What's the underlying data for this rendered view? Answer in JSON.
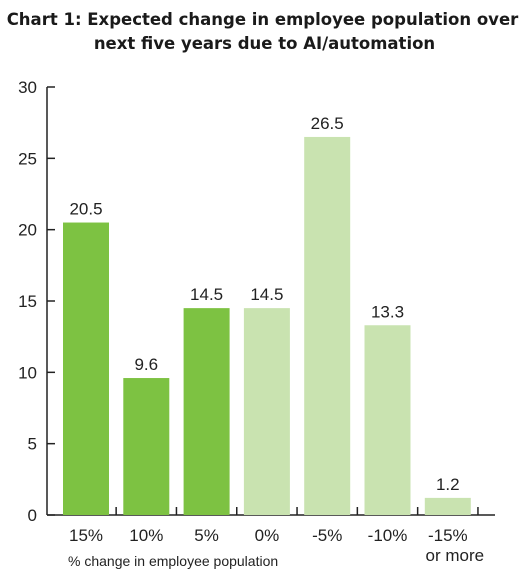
{
  "chart_data": {
    "type": "bar",
    "title_line1": "Chart 1: Expected change in employee population over",
    "title_line2": "next five years due to AI/automation",
    "xlabel": "% change in employee population",
    "ylabel": "",
    "categories": [
      "15%",
      "10%",
      "5%",
      "0%",
      "-5%",
      "-10%",
      "-15%\nor more"
    ],
    "values": [
      20.5,
      9.6,
      14.5,
      14.5,
      26.5,
      13.3,
      1.2
    ],
    "value_labels": [
      "20.5",
      "9.6",
      "14.5",
      "14.5",
      "26.5",
      "13.3",
      "1.2"
    ],
    "ylim": [
      0,
      30
    ],
    "yticks": [
      "0",
      "5",
      "10",
      "15",
      "20",
      "25",
      "30"
    ],
    "colors": [
      "#7dc242",
      "#7dc242",
      "#7dc242",
      "#c9e3b0",
      "#c9e3b0",
      "#c9e3b0",
      "#c9e3b0"
    ],
    "grid": false,
    "legend": "none"
  }
}
